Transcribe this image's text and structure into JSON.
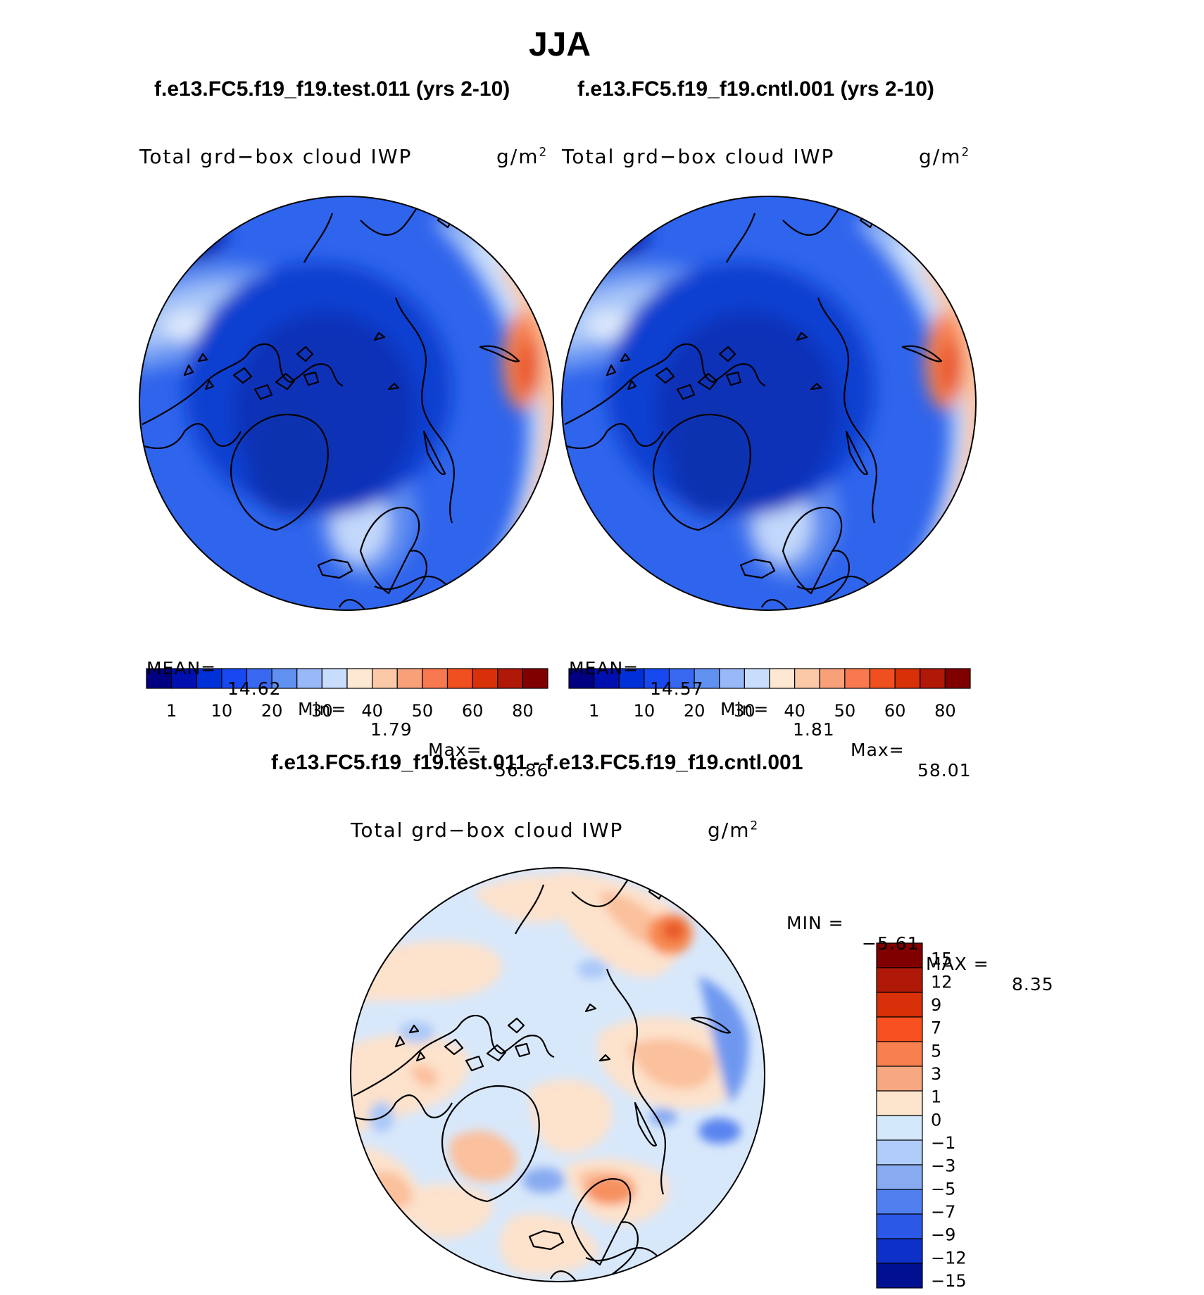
{
  "figure": {
    "season": "JJA",
    "case_test": "f.e13.FC5.f19_f19.test.011 (yrs 2-10)",
    "case_cntl": "f.e13.FC5.f19_f19.cntl.001 (yrs 2-10)",
    "diff_title": "f.e13.FC5.f19_f19.test.011 - f.e13.FC5.f19_f19.cntl.001"
  },
  "panels": [
    {
      "variable": "Total grd−box cloud IWP",
      "units_base": "g/m",
      "units_exp": "2",
      "mean_label": "MEAN=",
      "mean": "14.62",
      "min_label": "Min=",
      "min": "1.79",
      "max_label": "Max=",
      "max": "56.86"
    },
    {
      "variable": "Total grd−box cloud IWP",
      "units_base": "g/m",
      "units_exp": "2",
      "mean_label": "MEAN=",
      "mean": "14.57",
      "min_label": "Min=",
      "min": "1.81",
      "max_label": "Max=",
      "max": "58.01"
    }
  ],
  "diff_panel": {
    "variable": "Total grd−box cloud IWP",
    "units_base": "g/m",
    "units_exp": "2",
    "min_label": "MIN =",
    "min": "−5.61",
    "max_label": "MAX =",
    "max": "8.35"
  },
  "colorbar_main": {
    "colors": [
      "#000080",
      "#0010b0",
      "#0030d8",
      "#1848f0",
      "#3868f0",
      "#6090f0",
      "#98b8f8",
      "#c8dcfc",
      "#fde8d4",
      "#fbc8a8",
      "#f8a078",
      "#f87850",
      "#f05020",
      "#d83008",
      "#b01808",
      "#800000"
    ],
    "labels": [
      "1",
      "10",
      "20",
      "30",
      "40",
      "50",
      "60",
      "80"
    ]
  },
  "colorbar_diff": {
    "colors": [
      "#800000",
      "#b01808",
      "#d83008",
      "#f85020",
      "#f88050",
      "#f8a880",
      "#fde4cc",
      "#d4e8fc",
      "#b0ccf8",
      "#88aaf0",
      "#5080f0",
      "#2c58e8",
      "#0c30c8",
      "#001090"
    ],
    "labels": [
      "15",
      "12",
      "9",
      "7",
      "5",
      "3",
      "1",
      "0",
      "−1",
      "−3",
      "−5",
      "−7",
      "−9",
      "−12",
      "−15"
    ]
  },
  "colors": {
    "coastline": "#000000",
    "arctic_core": "#0a3fd0",
    "deep_blue": "#0d3ed8",
    "mid_blue": "#2f64ec",
    "light_blue": "#9cbcf7",
    "pale_blue": "#cfe1fb",
    "warm_peach": "#fbc4a0",
    "warm_orange": "#f7814f",
    "warm_red": "#e8552a",
    "diff_neutral": "#d8e8fb",
    "diff_warm": "#fde2cc"
  }
}
